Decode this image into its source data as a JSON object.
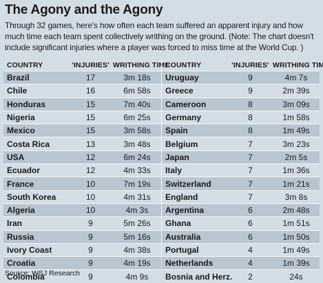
{
  "title": "The Agony and the Agony",
  "description": "Through 32 games, here's how often each team suffered an apparent injury and how much time each team spent collectively writhing on the ground. (Note: The chart doesn't include significant injuries where a player was forced to miss time at the World Cup. )",
  "source": "Source: WSJ Research",
  "colors": {
    "background": "#d3dde6",
    "row_shade": "#b9c6d1",
    "text": "#1a1a1a"
  },
  "chart_data": {
    "type": "table",
    "columns": [
      "COUNTRY",
      "'INJURIES'",
      "WRITHING TIME"
    ],
    "rows": [
      [
        "Brazil",
        "17",
        "3m 18s"
      ],
      [
        "Chile",
        "16",
        "6m 58s"
      ],
      [
        "Honduras",
        "15",
        "7m 40s"
      ],
      [
        "Nigeria",
        "15",
        "6m 25s"
      ],
      [
        "Mexico",
        "15",
        "3m 58s"
      ],
      [
        "Costa Rica",
        "13",
        "3m 48s"
      ],
      [
        "USA",
        "12",
        "6m 24s"
      ],
      [
        "Ecuador",
        "12",
        "4m 33s"
      ],
      [
        "France",
        "10",
        "7m 19s"
      ],
      [
        "South Korea",
        "10",
        "4m 31s"
      ],
      [
        "Algeria",
        "10",
        "4m 3s"
      ],
      [
        "Iran",
        "9",
        "5m 26s"
      ],
      [
        "Russia",
        "9",
        "5m 16s"
      ],
      [
        "Ivory Coast",
        "9",
        "4m 38s"
      ],
      [
        "Croatia",
        "9",
        "4m 19s"
      ],
      [
        "Colombia",
        "9",
        "4m 9s"
      ],
      [
        "Uruguay",
        "9",
        "4m 7s"
      ],
      [
        "Greece",
        "9",
        "2m 39s"
      ],
      [
        "Cameroon",
        "8",
        "3m 09s"
      ],
      [
        "Germany",
        "8",
        "1m 58s"
      ],
      [
        "Spain",
        "8",
        "1m 49s"
      ],
      [
        "Belgium",
        "7",
        "3m 23s"
      ],
      [
        "Japan",
        "7",
        "2m 5s"
      ],
      [
        "Italy",
        "7",
        "1m 36s"
      ],
      [
        "Switzerland",
        "7",
        "1m 21s"
      ],
      [
        "England",
        "7",
        "3m 8s"
      ],
      [
        "Argentina",
        "6",
        "2m 48s"
      ],
      [
        "Ghana",
        "6",
        "1m 51s"
      ],
      [
        "Australia",
        "6",
        "1m 50s"
      ],
      [
        "Portugal",
        "4",
        "1m 49s"
      ],
      [
        "Netherlands",
        "4",
        "1m 39s"
      ],
      [
        "Bosnia and Herz.",
        "2",
        "24s"
      ]
    ]
  }
}
